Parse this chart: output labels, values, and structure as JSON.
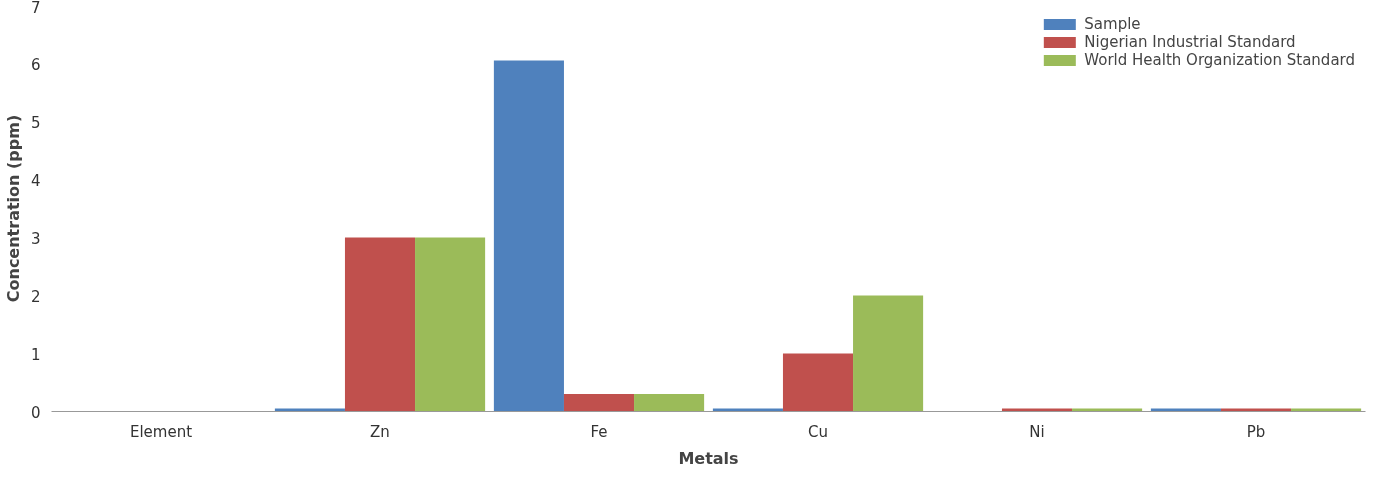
{
  "chart_data": {
    "type": "bar",
    "xlabel": "Metals",
    "ylabel": "Concentration (ppm)",
    "categories": [
      "Element",
      "Zn",
      "Fe",
      "Cu",
      "Ni",
      "Pb"
    ],
    "series": [
      {
        "name": "Sample",
        "color": "#4f81bd",
        "values": [
          0,
          0.05,
          6.05,
          0.05,
          0,
          0.05
        ]
      },
      {
        "name": "Nigerian Industrial Standard",
        "color": "#c0504d",
        "values": [
          0,
          3,
          0.3,
          1,
          0.05,
          0.05
        ]
      },
      {
        "name": "World Health Organization Standard",
        "color": "#9bbb59",
        "values": [
          0,
          3,
          0.3,
          2,
          0.05,
          0.05
        ]
      }
    ],
    "ylim": [
      0,
      7
    ],
    "yticks": [
      0,
      1,
      2,
      3,
      4,
      5,
      6,
      7
    ],
    "grid": false,
    "legend": "top right"
  }
}
